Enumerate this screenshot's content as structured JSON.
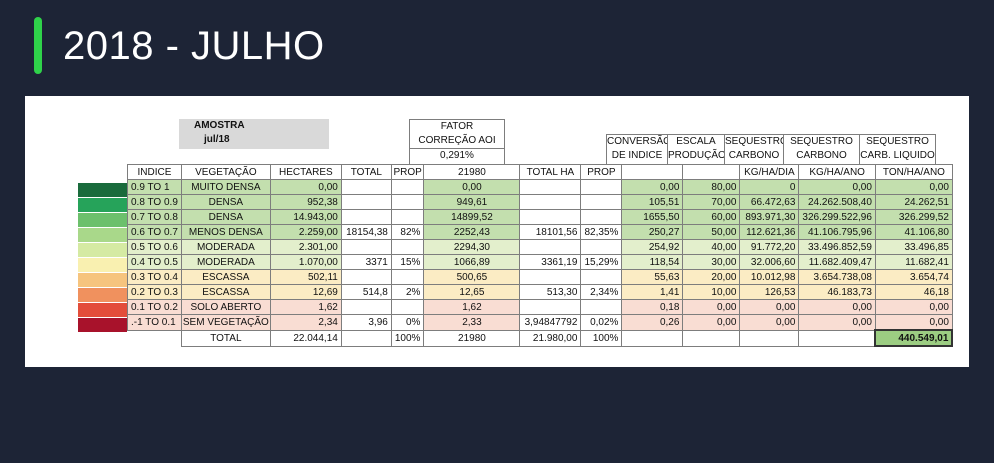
{
  "title": "2018 - JULHO",
  "colors": {
    "accent": "#2fd24a",
    "background": "#1d2436",
    "swatches": [
      "#1a6b3c",
      "#26a35a",
      "#6cc06c",
      "#a9d88a",
      "#d5eaa3",
      "#f9f0b0",
      "#f6c47e",
      "#f0915e",
      "#e34d3a",
      "#a8122b"
    ]
  },
  "amostra": {
    "label": "AMOSTRA",
    "value": "jul/18"
  },
  "fator": {
    "line1": "FATOR",
    "line2": "CORREÇÃO AOI",
    "value": "0,291%"
  },
  "headers": {
    "indice": "INDICE",
    "vegetacao": "VEGETAÇÃO",
    "hectares": "HECTARES",
    "total": "TOTAL",
    "prop": "PROP",
    "fator_total": "21980",
    "total_ha": "TOTAL HA",
    "prop2": "PROP",
    "conversao": [
      "CONVERSÃO",
      "DE INDICE"
    ],
    "escala": [
      "ESCALA",
      "PRODUÇÃO"
    ],
    "seq_dia": [
      "SEQUESTRO",
      "CARBONO",
      "KG/HA/DIA"
    ],
    "seq_ano": [
      "SEQUESTRO",
      "CARBONO",
      "KG/HA/ANO"
    ],
    "seq_liq": [
      "SEQUESTRO",
      "CARB. LIQUIDO",
      "TON/HA/ANO"
    ]
  },
  "rows": [
    {
      "indice": "0.9 TO 1",
      "veg": "MUITO DENSA",
      "ha": "0,00",
      "total": "",
      "prop": "",
      "fator": "0,00",
      "total_ha": "",
      "prop2": "",
      "conv": "0,00",
      "escala": "80,00",
      "dia": "0",
      "ano": "0,00",
      "liq": "0,00",
      "bg": "#c3dfae"
    },
    {
      "indice": "0.8 TO 0.9",
      "veg": "DENSA",
      "ha": "952,38",
      "total": "",
      "prop": "",
      "fator": "949,61",
      "total_ha": "",
      "prop2": "",
      "conv": "105,51",
      "escala": "70,00",
      "dia": "66.472,63",
      "ano": "24.262.508,40",
      "liq": "24.262,51",
      "bg": "#c3dfae"
    },
    {
      "indice": "0.7 TO 0.8",
      "veg": "DENSA",
      "ha": "14.943,00",
      "total": "",
      "prop": "",
      "fator": "14899,52",
      "total_ha": "",
      "prop2": "",
      "conv": "1655,50",
      "escala": "60,00",
      "dia": "893.971,30",
      "ano": "326.299.522,96",
      "liq": "326.299,52",
      "bg": "#c3dfae"
    },
    {
      "indice": "0.6 TO 0.7",
      "veg": "MENOS DENSA",
      "ha": "2.259,00",
      "total": "18154,38",
      "prop": "82%",
      "fator": "2252,43",
      "total_ha": "18101,56",
      "prop2": "82,35%",
      "conv": "250,27",
      "escala": "50,00",
      "dia": "112.621,36",
      "ano": "41.106.795,96",
      "liq": "41.106,80",
      "bg": "#c3dfae"
    },
    {
      "indice": "0.5 TO 0.6",
      "veg": "MODERADA",
      "ha": "2.301,00",
      "total": "",
      "prop": "",
      "fator": "2294,30",
      "total_ha": "",
      "prop2": "",
      "conv": "254,92",
      "escala": "40,00",
      "dia": "91.772,20",
      "ano": "33.496.852,59",
      "liq": "33.496,85",
      "bg": "#e3efcc"
    },
    {
      "indice": "0.4 TO 0.5",
      "veg": "MODERADA",
      "ha": "1.070,00",
      "total": "3371",
      "prop": "15%",
      "fator": "1066,89",
      "total_ha": "3361,19",
      "prop2": "15,29%",
      "conv": "118,54",
      "escala": "30,00",
      "dia": "32.006,60",
      "ano": "11.682.409,47",
      "liq": "11.682,41",
      "bg": "#e3efcc"
    },
    {
      "indice": "0.3 TO 0.4",
      "veg": "ESCASSA",
      "ha": "502,11",
      "total": "",
      "prop": "",
      "fator": "500,65",
      "total_ha": "",
      "prop2": "",
      "conv": "55,63",
      "escala": "20,00",
      "dia": "10.012,98",
      "ano": "3.654.738,08",
      "liq": "3.654,74",
      "bg": "#fbecc4"
    },
    {
      "indice": "0.2 TO 0.3",
      "veg": "ESCASSA",
      "ha": "12,69",
      "total": "514,8",
      "prop": "2%",
      "fator": "12,65",
      "total_ha": "513,30",
      "prop2": "2,34%",
      "conv": "1,41",
      "escala": "10,00",
      "dia": "126,53",
      "ano": "46.183,73",
      "liq": "46,18",
      "bg": "#fbecc4"
    },
    {
      "indice": "0.1 TO 0.2",
      "veg": "SOLO ABERTO",
      "ha": "1,62",
      "total": "",
      "prop": "",
      "fator": "1,62",
      "total_ha": "",
      "prop2": "",
      "conv": "0,18",
      "escala": "0,00",
      "dia": "0,00",
      "ano": "0,00",
      "liq": "0,00",
      "bg": "#f9ddd3"
    },
    {
      "indice": ".-1 TO 0.1",
      "veg": "SEM VEGETAÇÃO",
      "ha": "2,34",
      "total": "3,96",
      "prop": "0%",
      "fator": "2,33",
      "total_ha": "3,94847792",
      "prop2": "0,02%",
      "conv": "0,26",
      "escala": "0,00",
      "dia": "0,00",
      "ano": "0,00",
      "liq": "0,00",
      "bg": "#f9ddd3"
    }
  ],
  "totals": {
    "label": "TOTAL",
    "ha": "22.044,14",
    "prop": "100%",
    "fator": "21980",
    "total_ha": "21.980,00",
    "prop2": "100%",
    "liq": "440.549,01"
  }
}
